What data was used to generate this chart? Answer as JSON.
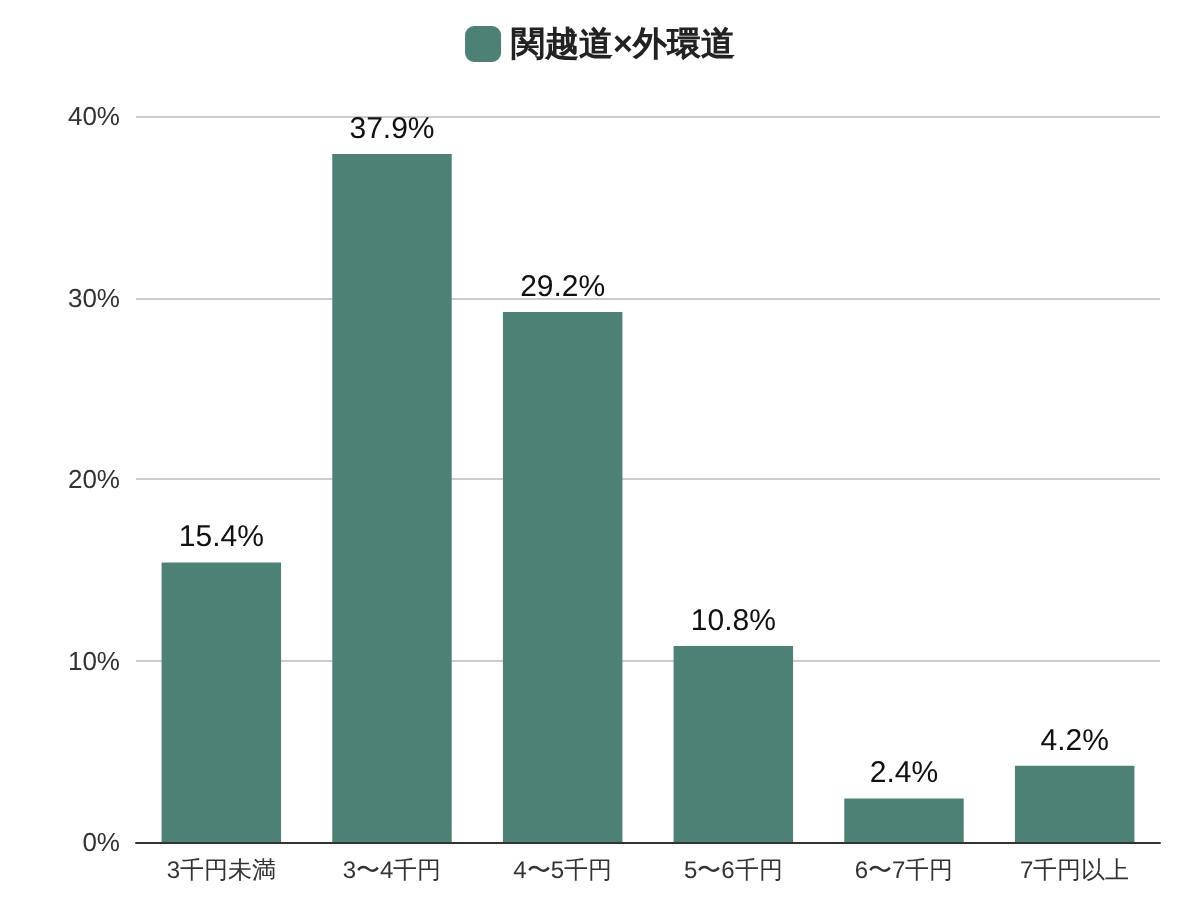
{
  "chart_data": {
    "type": "bar",
    "categories": [
      "3千円未満",
      "3〜4千円",
      "4〜5千円",
      "5〜6千円",
      "6〜7千円",
      "7千円以上"
    ],
    "series": [
      {
        "name": "関越道×外環道",
        "color": "#4e8176",
        "values": [
          15.4,
          37.9,
          29.2,
          10.8,
          2.4,
          4.2
        ],
        "value_labels": [
          "15.4%",
          "37.9%",
          "29.2%",
          "10.8%",
          "2.4%",
          "4.2%"
        ]
      }
    ],
    "ylim": [
      0,
      40
    ],
    "yticks": [
      {
        "value": 0,
        "label": "0%"
      },
      {
        "value": 10,
        "label": "10%"
      },
      {
        "value": 20,
        "label": "20%"
      },
      {
        "value": 30,
        "label": "30%"
      },
      {
        "value": 40,
        "label": "40%"
      }
    ],
    "grid": "y",
    "legend": "top"
  }
}
